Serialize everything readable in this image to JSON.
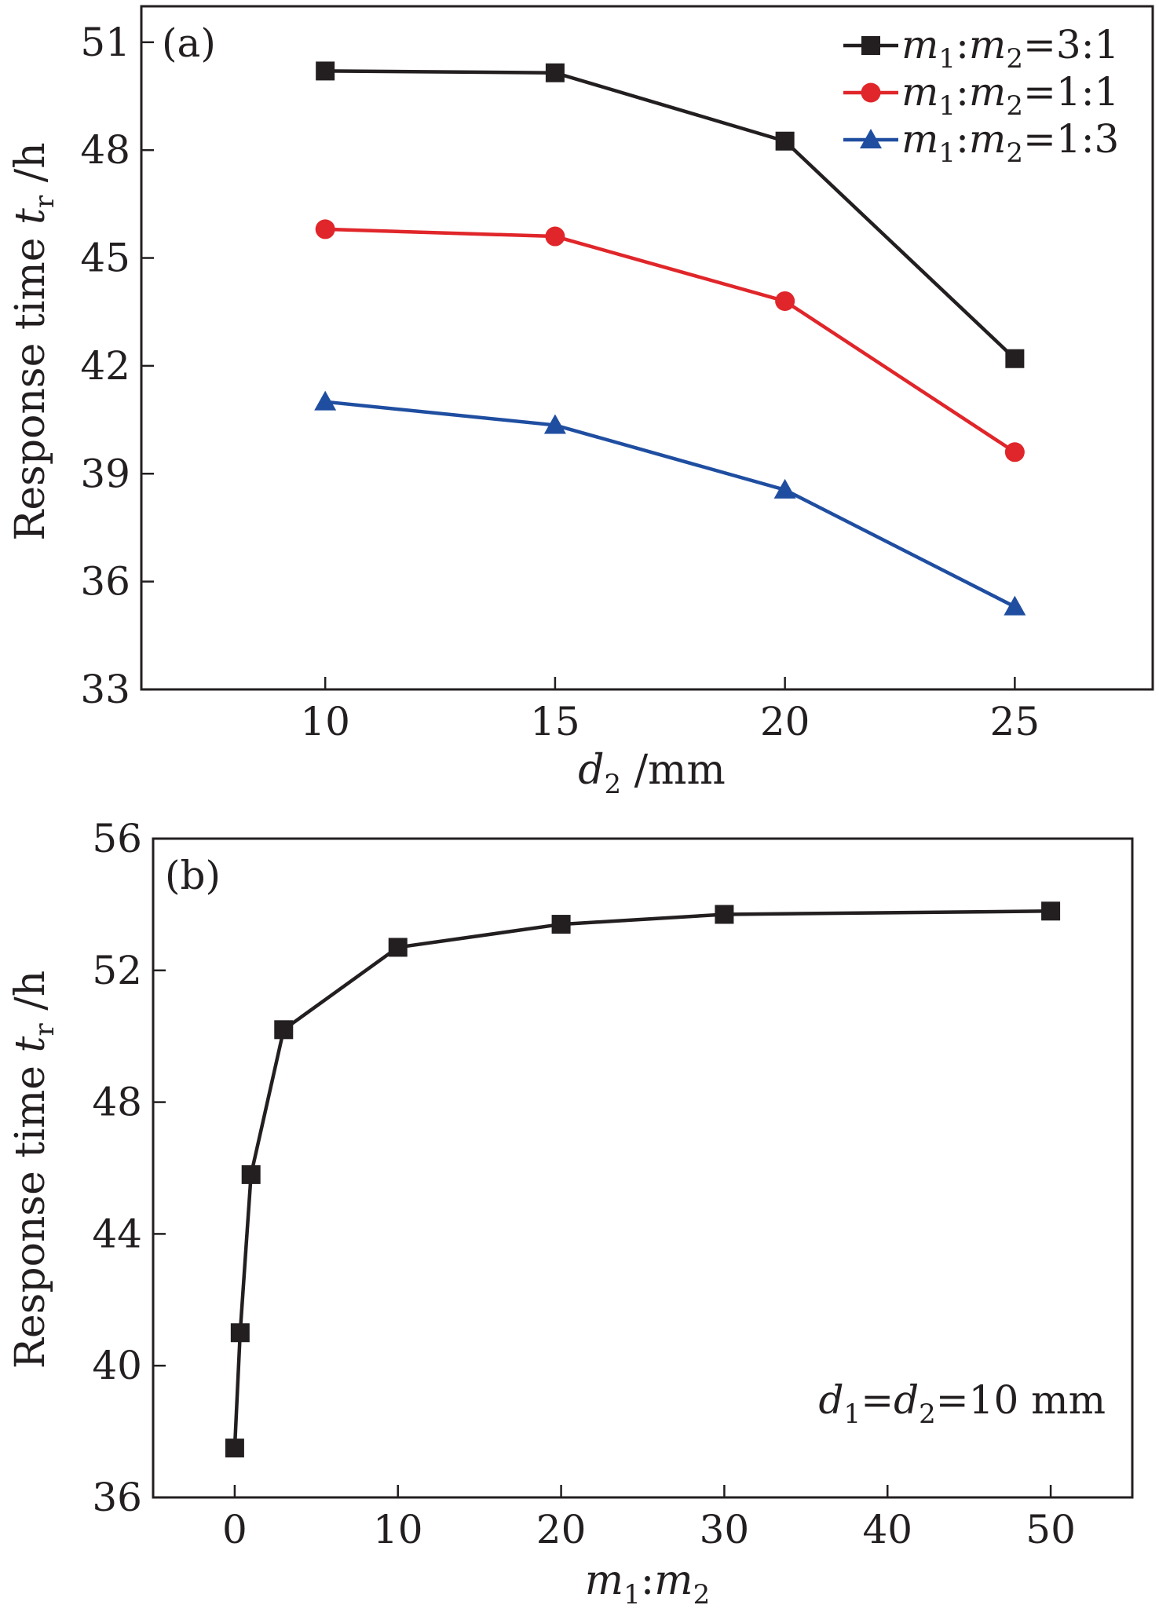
{
  "chart_data": [
    {
      "type": "line",
      "panel_label": "(a)",
      "xlabel": {
        "italic": "d",
        "sub": "2",
        "rest": " /mm"
      },
      "ylabel": {
        "text": "Response time ",
        "italic": "t",
        "sub": "r",
        "rest": " /h"
      },
      "xlim": [
        6,
        28
      ],
      "ylim": [
        33,
        52
      ],
      "xticks": [
        10,
        15,
        20,
        25
      ],
      "yticks": [
        33,
        36,
        39,
        42,
        45,
        48,
        51
      ],
      "x": [
        10,
        15,
        20,
        25
      ],
      "legend_position": "top-right",
      "series": [
        {
          "name": "m1:m2=3:1",
          "color": "#231f20",
          "marker": "square",
          "values": [
            50.2,
            50.15,
            48.25,
            42.2
          ]
        },
        {
          "name": "m1:m2=1:1",
          "color": "#e0262a",
          "marker": "circle",
          "values": [
            45.8,
            45.6,
            43.8,
            39.6
          ]
        },
        {
          "name": "m1:m2=1:3",
          "color": "#1f4ea1",
          "marker": "triangle",
          "values": [
            41.0,
            40.35,
            38.55,
            35.3
          ]
        }
      ]
    },
    {
      "type": "line",
      "panel_label": "(b)",
      "xlabel": {
        "m1": "m",
        "s1": "1",
        "colon": ":",
        "m2": "m",
        "s2": "2"
      },
      "ylabel": {
        "text": "Response time ",
        "italic": "t",
        "sub": "r",
        "rest": " /h"
      },
      "xlim": [
        -5,
        55
      ],
      "ylim": [
        36,
        56
      ],
      "xticks": [
        0,
        10,
        20,
        30,
        40,
        50
      ],
      "yticks": [
        36,
        40,
        44,
        48,
        52,
        56
      ],
      "annotation": {
        "d1": "d",
        "s1": "1",
        "eq1": "=",
        "d2": "d",
        "s2": "2",
        "val": "=10 mm"
      },
      "series": [
        {
          "color": "#231f20",
          "marker": "square",
          "x": [
            0,
            0.333,
            1,
            3,
            10,
            20,
            30,
            50
          ],
          "values": [
            37.5,
            41.0,
            45.8,
            50.2,
            52.7,
            53.4,
            53.7,
            53.8
          ]
        }
      ]
    }
  ]
}
